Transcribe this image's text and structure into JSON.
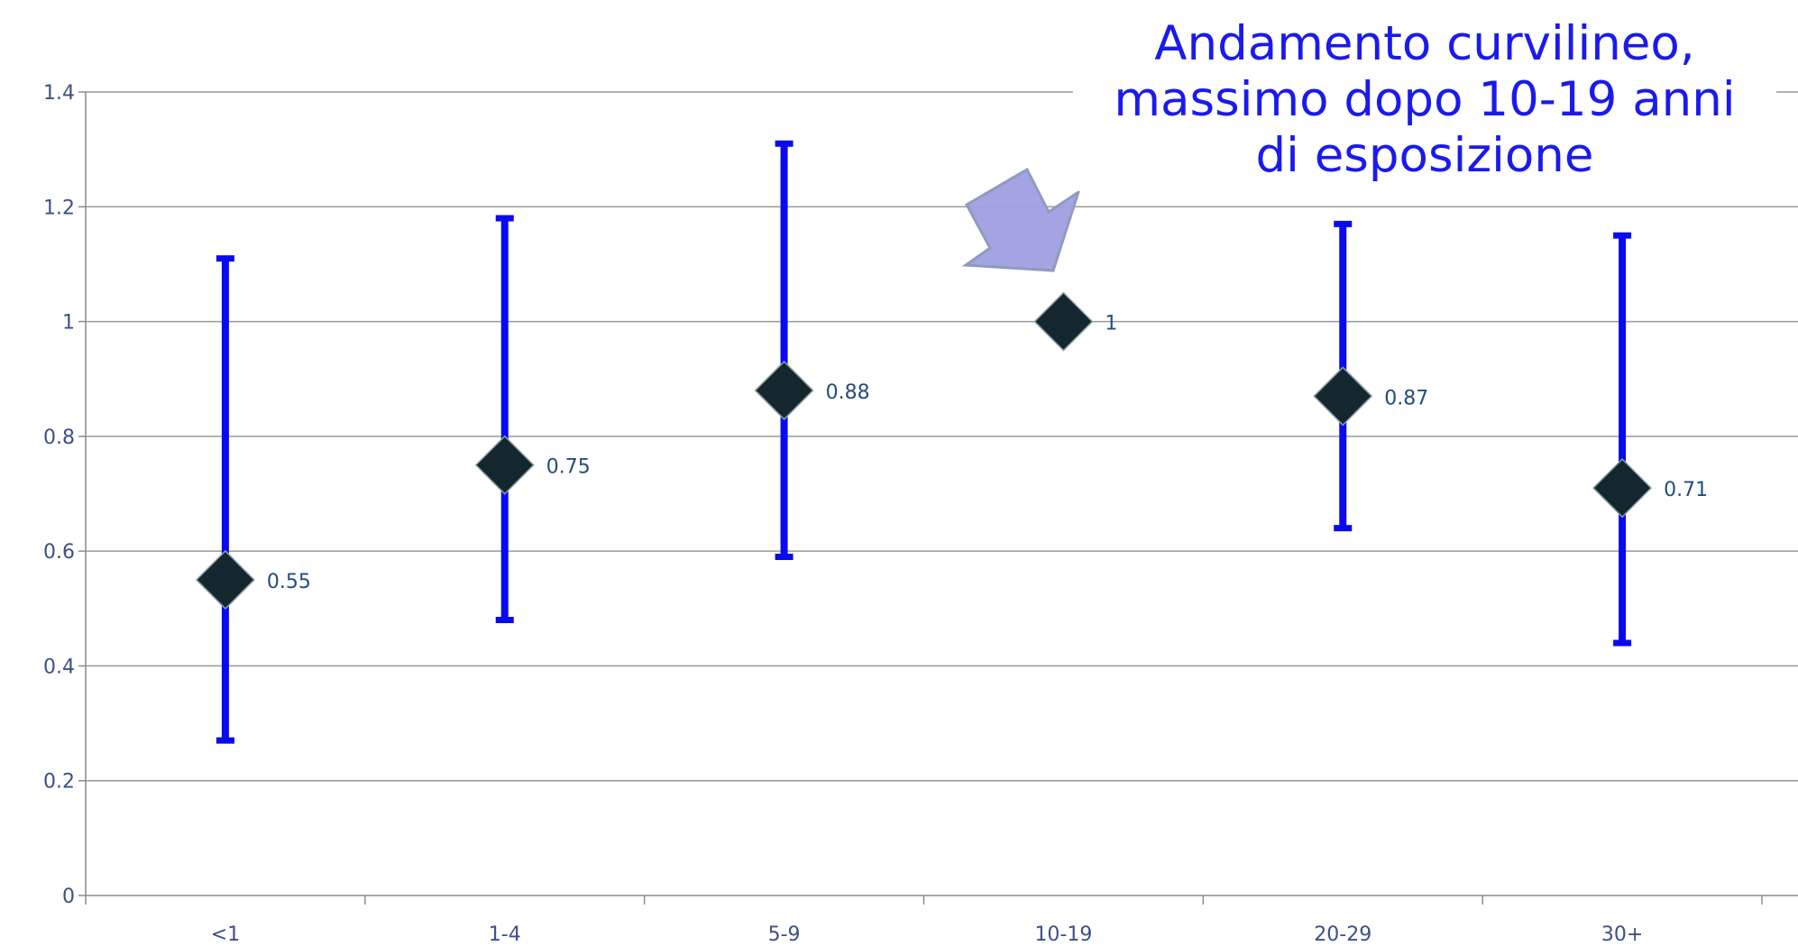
{
  "annotation": {
    "lines": [
      "Andamento curvilineo,",
      "massimo dopo 10-19 anni",
      "di esposizione"
    ]
  },
  "chart_data": {
    "type": "scatter",
    "categories": [
      "<1\u001f",
      "1-4\u001f",
      "5-9\u001f",
      "10-19\u001f",
      "20-29\u001f",
      "30+\u001f"
    ],
    "series": [
      {
        "values": [
          0.55,
          0.75,
          0.88,
          1,
          0.87,
          0.71
        ],
        "lower": [
          0.27,
          0.48,
          0.59,
          null,
          0.64,
          0.44
        ],
        "upper": [
          1.11,
          1.18,
          1.31,
          null,
          1.17,
          1.15
        ],
        "data_labels": [
          "0.55\u001f",
          "0.75\u001f",
          "0.88\u001f",
          "1\u001f",
          "0.87\u001f",
          "0.71\u001f"
        ]
      }
    ],
    "y_ticks": [
      "0\u001f",
      "0.2\u001f",
      "0.4\u001f",
      "0.6\u001f",
      "0.8\u001f",
      "1\u001f",
      "1.2\u001f",
      "1.4\u001f"
    ],
    "ylim": [
      0,
      1.4
    ],
    "grid": true,
    "title": "",
    "xlabel": "",
    "ylabel": ""
  },
  "colors": {
    "error_bar": "#0a0af0",
    "marker": "#14272e",
    "gridline": "#999999",
    "axis": "#8c8c8c",
    "tick_text": "#3f4f86",
    "data_label_text": "#244d7a",
    "annotation_text": "#1a1aee",
    "arrow_fill": "#9f9fe0",
    "arrow_stroke": "#8e9bbf"
  }
}
